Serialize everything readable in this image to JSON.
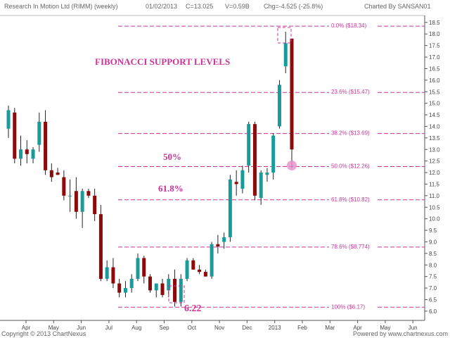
{
  "header": {
    "title": "Research In Motion Ltd (RIMM) (weekly)",
    "date": "01/02/2013",
    "close": "C=13.025",
    "volume": "V=0.59B",
    "change": "Chg=-4.525 (-25.8%)",
    "charted_by": "Charted By SANSAN01"
  },
  "footer": {
    "copyright": "Copyright © 2013 ChartNexus",
    "powered": "Powered by www.chartnexus.com"
  },
  "colors": {
    "up": "#1a9b9b",
    "down": "#8b0a0a",
    "fib": "#cc3399",
    "grid": "#dddddd"
  },
  "chart_data": {
    "type": "candlestick",
    "x_labels": [
      "Apr",
      "May",
      "Jun",
      "Jul",
      "Aug",
      "Sep",
      "Oct",
      "Nov",
      "Dec",
      "2013",
      "Feb",
      "Mar",
      "Apr",
      "May",
      "Jun"
    ],
    "y_ticks": [
      6.0,
      6.5,
      7.0,
      7.5,
      8.0,
      8.5,
      9.0,
      9.5,
      10.0,
      10.5,
      11.0,
      11.5,
      12.0,
      12.5,
      13.0,
      13.5,
      14.0,
      14.5,
      15.0,
      15.5,
      16.0,
      16.5,
      17.0,
      17.5,
      18.0,
      18.5
    ],
    "ylim": [
      5.6,
      18.8
    ],
    "fibonacci_levels": [
      {
        "label": "0.0% ($18.34)",
        "value": 18.34
      },
      {
        "label": "23.6% ($15.47)",
        "value": 15.47
      },
      {
        "label": "38.2% ($13.69)",
        "value": 13.69
      },
      {
        "label": "50.0% ($12.26)",
        "value": 12.26
      },
      {
        "label": "61.8% ($10.82)",
        "value": 10.82
      },
      {
        "label": "78.6% ($8.774)",
        "value": 8.774
      },
      {
        "label": "100% ($6.17)",
        "value": 6.17
      }
    ],
    "candles": [
      {
        "o": 13.9,
        "h": 14.9,
        "l": 13.5,
        "c": 14.7
      },
      {
        "o": 14.6,
        "h": 14.8,
        "l": 12.4,
        "c": 12.6
      },
      {
        "o": 12.6,
        "h": 13.6,
        "l": 12.3,
        "c": 13.0
      },
      {
        "o": 13.0,
        "h": 13.4,
        "l": 12.4,
        "c": 12.8
      },
      {
        "o": 12.6,
        "h": 13.1,
        "l": 12.4,
        "c": 13.0
      },
      {
        "o": 13.2,
        "h": 14.6,
        "l": 12.9,
        "c": 14.2
      },
      {
        "o": 14.2,
        "h": 14.7,
        "l": 11.9,
        "c": 12.1
      },
      {
        "o": 12.1,
        "h": 12.4,
        "l": 11.6,
        "c": 11.8
      },
      {
        "o": 12.0,
        "h": 12.2,
        "l": 11.9,
        "c": 11.9
      },
      {
        "o": 11.8,
        "h": 12.1,
        "l": 10.8,
        "c": 11.0
      },
      {
        "o": 11.0,
        "h": 11.7,
        "l": 10.3,
        "c": 11.0
      },
      {
        "o": 11.2,
        "h": 11.8,
        "l": 10.0,
        "c": 10.3
      },
      {
        "o": 10.3,
        "h": 11.3,
        "l": 9.6,
        "c": 11.2
      },
      {
        "o": 11.2,
        "h": 11.3,
        "l": 10.9,
        "c": 11.0
      },
      {
        "o": 11.0,
        "h": 11.3,
        "l": 9.9,
        "c": 10.2
      },
      {
        "o": 10.2,
        "h": 10.6,
        "l": 7.3,
        "c": 7.4
      },
      {
        "o": 7.4,
        "h": 8.2,
        "l": 7.3,
        "c": 7.9
      },
      {
        "o": 7.9,
        "h": 8.3,
        "l": 7.0,
        "c": 7.2
      },
      {
        "o": 7.2,
        "h": 7.4,
        "l": 6.6,
        "c": 6.8
      },
      {
        "o": 6.8,
        "h": 7.3,
        "l": 6.6,
        "c": 7.0
      },
      {
        "o": 7.0,
        "h": 7.6,
        "l": 6.8,
        "c": 7.4
      },
      {
        "o": 7.4,
        "h": 8.5,
        "l": 7.3,
        "c": 8.3
      },
      {
        "o": 8.3,
        "h": 8.4,
        "l": 7.2,
        "c": 7.5
      },
      {
        "o": 7.5,
        "h": 7.6,
        "l": 6.8,
        "c": 6.9
      },
      {
        "o": 6.9,
        "h": 7.1,
        "l": 6.6,
        "c": 7.2
      },
      {
        "o": 7.2,
        "h": 7.4,
        "l": 6.6,
        "c": 6.7
      },
      {
        "o": 6.9,
        "h": 7.6,
        "l": 6.6,
        "c": 7.4
      },
      {
        "o": 7.4,
        "h": 7.8,
        "l": 6.2,
        "c": 6.4
      },
      {
        "o": 6.4,
        "h": 7.6,
        "l": 6.2,
        "c": 7.4
      },
      {
        "o": 7.4,
        "h": 8.3,
        "l": 7.3,
        "c": 8.2
      },
      {
        "o": 8.2,
        "h": 8.3,
        "l": 7.8,
        "c": 7.8
      },
      {
        "o": 7.8,
        "h": 8.0,
        "l": 7.6,
        "c": 7.7
      },
      {
        "o": 7.7,
        "h": 7.8,
        "l": 7.5,
        "c": 7.5
      },
      {
        "o": 7.5,
        "h": 9.0,
        "l": 7.4,
        "c": 8.9
      },
      {
        "o": 8.9,
        "h": 9.3,
        "l": 8.5,
        "c": 8.8
      },
      {
        "o": 9.0,
        "h": 9.4,
        "l": 8.7,
        "c": 9.2
      },
      {
        "o": 9.2,
        "h": 11.9,
        "l": 9.0,
        "c": 11.7
      },
      {
        "o": 11.6,
        "h": 12.1,
        "l": 11.0,
        "c": 11.5
      },
      {
        "o": 11.3,
        "h": 12.3,
        "l": 11.1,
        "c": 12.1
      },
      {
        "o": 12.3,
        "h": 14.2,
        "l": 12.0,
        "c": 14.1
      },
      {
        "o": 14.1,
        "h": 14.2,
        "l": 10.8,
        "c": 11.0
      },
      {
        "o": 10.9,
        "h": 12.1,
        "l": 10.6,
        "c": 12.0
      },
      {
        "o": 11.9,
        "h": 12.2,
        "l": 11.6,
        "c": 12.0
      },
      {
        "o": 12.0,
        "h": 13.7,
        "l": 11.7,
        "c": 13.6
      },
      {
        "o": 14.0,
        "h": 16.0,
        "l": 13.9,
        "c": 15.8
      },
      {
        "o": 16.6,
        "h": 18.1,
        "l": 16.3,
        "c": 17.6
      },
      {
        "o": 17.8,
        "h": 17.8,
        "l": 12.2,
        "c": 13.0
      }
    ],
    "annotations": {
      "title": "FIBONACCI SUPPORT LEVELS",
      "pct50": "50%",
      "pct618": "61.8%",
      "low_value": "6.22"
    }
  }
}
